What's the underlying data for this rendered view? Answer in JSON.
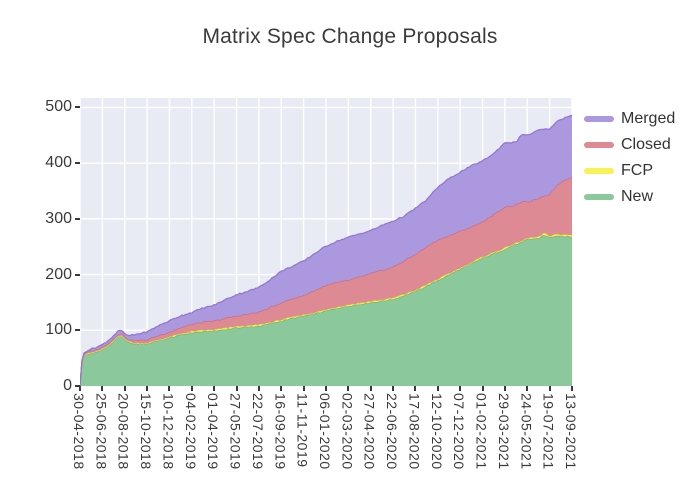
{
  "title": "Matrix Spec Change Proposals",
  "legend": {
    "items": [
      {
        "label": "Merged",
        "color": "#ab98de"
      },
      {
        "label": "Closed",
        "color": "#dd8a94"
      },
      {
        "label": "FCP",
        "color": "#f7f356"
      },
      {
        "label": "New",
        "color": "#8bc89c"
      }
    ]
  },
  "chart_data": {
    "type": "area",
    "stacked": true,
    "title": "Matrix Spec Change Proposals",
    "xlabel": "",
    "ylabel": "",
    "grid": true,
    "legend_position": "right-top",
    "plot_background": "#e9ebf4",
    "gridline_color": "#ffffff",
    "ylim": [
      0,
      517
    ],
    "y_ticks": [
      0,
      100,
      200,
      300,
      400,
      500
    ],
    "x_unit": "days since first date",
    "xlim_days": [
      0,
      1232
    ],
    "x_tick_days": [
      0,
      56,
      112,
      168,
      224,
      280,
      336,
      392,
      448,
      504,
      560,
      616,
      672,
      728,
      784,
      840,
      896,
      952,
      1008,
      1064,
      1120,
      1176,
      1232
    ],
    "x_tick_labels": [
      "30-04-2018",
      "25-06-2018",
      "20-08-2018",
      "15-10-2018",
      "10-12-2018",
      "04-02-2019",
      "01-04-2019",
      "27-05-2019",
      "22-07-2019",
      "16-09-2019",
      "11-11-2019",
      "06-01-2020",
      "02-03-2020",
      "27-04-2020",
      "22-06-2020",
      "17-08-2020",
      "12-10-2020",
      "07-12-2020",
      "01-02-2021",
      "29-03-2021",
      "24-05-2021",
      "19-07-2021",
      "13-09-2021"
    ],
    "stack_order_bottom_to_top": [
      "New",
      "FCP",
      "Closed",
      "Merged"
    ],
    "anchor_days": [
      0,
      4,
      8,
      18,
      35,
      56,
      75,
      95,
      104,
      112,
      122,
      136,
      168,
      196,
      224,
      252,
      280,
      308,
      336,
      364,
      392,
      420,
      448,
      476,
      504,
      532,
      560,
      588,
      616,
      644,
      672,
      700,
      728,
      756,
      784,
      812,
      840,
      868,
      896,
      924,
      952,
      980,
      1008,
      1036,
      1064,
      1092,
      1106,
      1120,
      1148,
      1162,
      1176,
      1190,
      1204,
      1218,
      1232
    ],
    "series": [
      {
        "name": "New",
        "fill": "#8bc89c",
        "edge": "#65b380",
        "values": [
          0,
          40,
          53,
          57,
          60,
          65,
          74,
          88,
          90,
          85,
          79,
          76,
          76,
          82,
          87,
          92,
          96,
          98,
          99,
          102,
          105,
          106,
          108,
          112,
          117,
          122,
          126,
          130,
          135,
          140,
          144,
          147,
          150,
          153,
          156,
          163,
          170,
          180,
          190,
          200,
          210,
          220,
          230,
          238,
          246,
          255,
          258,
          264,
          265,
          272,
          266,
          270,
          268,
          269,
          268
        ]
      },
      {
        "name": "FCP",
        "fill": "#f7f356",
        "edge": "#e5dd2e",
        "values": [
          0,
          0,
          1,
          1,
          1,
          1,
          1,
          1,
          1,
          1,
          1,
          1,
          1,
          1,
          1,
          2,
          2,
          2,
          2,
          2,
          2,
          2,
          2,
          2,
          2,
          2,
          2,
          2,
          2,
          2,
          2,
          2,
          2,
          2,
          2,
          2,
          2,
          2,
          2,
          2,
          2,
          2,
          2,
          2,
          2,
          2,
          2,
          2,
          2,
          3,
          3,
          3,
          3,
          3,
          3
        ]
      },
      {
        "name": "Closed",
        "fill": "#dd8a94",
        "edge": "#cb6a78",
        "values": [
          0,
          1,
          2,
          3,
          3,
          4,
          4,
          4,
          4,
          3,
          4,
          5,
          6,
          8,
          9,
          11,
          13,
          15,
          16,
          18,
          19,
          21,
          23,
          27,
          31,
          33,
          35,
          40,
          44,
          44,
          44,
          47,
          50,
          53,
          56,
          60,
          65,
          68,
          71,
          68,
          66,
          64,
          63,
          68,
          74,
          68,
          72,
          64,
          70,
          65,
          76,
          85,
          95,
          100,
          104
        ]
      },
      {
        "name": "Merged",
        "fill": "#ab98de",
        "edge": "#9377d2",
        "values": [
          0,
          1,
          2,
          3,
          4,
          4,
          5,
          5,
          5,
          4,
          6,
          10,
          14,
          17,
          20,
          21,
          21,
          25,
          28,
          33,
          38,
          41,
          44,
          50,
          56,
          58,
          61,
          66,
          70,
          74,
          77,
          77,
          77,
          80,
          82,
          80,
          82,
          84,
          94,
          102,
          106,
          109,
          109,
          109,
          115,
          112,
          120,
          120,
          122,
          121,
          115,
          115,
          112,
          111,
          111
        ]
      }
    ]
  }
}
